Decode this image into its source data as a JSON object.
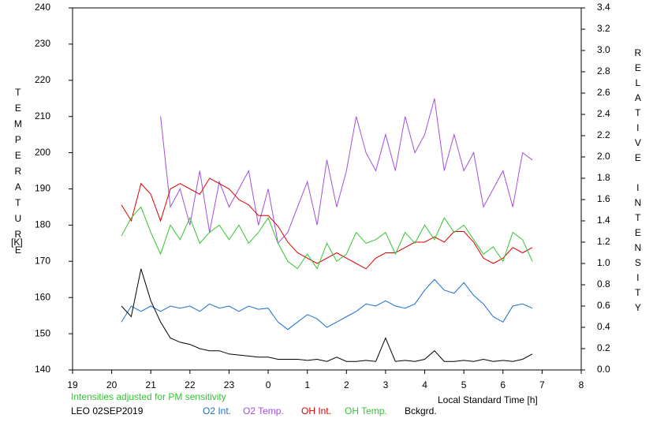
{
  "chart_data": {
    "type": "line",
    "note_text": "Intensities adjusted for PM sensitivity",
    "station": "LEO 02SEP2019",
    "ylabel": "TEMPERATURE",
    "yunit": "[K]",
    "y2label": "RELATIVE INTENSITY",
    "xlabel": "Local Standard Time [h]",
    "xlim": [
      19,
      32
    ],
    "xticks": [
      19,
      20,
      21,
      22,
      23,
      {
        "value": 24,
        "label": "0"
      },
      {
        "value": 25,
        "label": "1"
      },
      {
        "value": 26,
        "label": "2"
      },
      {
        "value": 27,
        "label": "3"
      },
      {
        "value": 28,
        "label": "4"
      },
      {
        "value": 29,
        "label": "5"
      },
      {
        "value": 30,
        "label": "6"
      },
      {
        "value": 31,
        "label": "7"
      },
      {
        "value": 32,
        "label": "8"
      }
    ],
    "ylim": [
      140,
      240
    ],
    "yticks": [
      140,
      150,
      160,
      170,
      180,
      190,
      200,
      210,
      220,
      230,
      240
    ],
    "y2lim": [
      0,
      3.4
    ],
    "y2ticks": [
      {
        "value": 0,
        "label": "0.0"
      },
      0.2,
      0.4,
      0.6,
      0.8,
      {
        "value": 1,
        "label": "1.0"
      },
      1.2,
      1.4,
      1.6,
      1.8,
      {
        "value": 2,
        "label": "2.0"
      },
      2.2,
      2.4,
      2.6,
      2.8,
      {
        "value": 3,
        "label": "3.0"
      },
      3.2,
      3.4
    ],
    "x": [
      20.25,
      20.5,
      20.75,
      21,
      21.25,
      21.5,
      21.75,
      22,
      22.25,
      22.5,
      22.75,
      23,
      23.25,
      23.5,
      23.75,
      24,
      24.25,
      24.5,
      24.75,
      25,
      25.25,
      25.5,
      25.75,
      26,
      26.25,
      26.5,
      26.75,
      27,
      27.25,
      27.5,
      27.75,
      28,
      28.25,
      28.5,
      28.75,
      29,
      29.25,
      29.5,
      29.75,
      30,
      30.25,
      30.5,
      30.75
    ],
    "series": [
      {
        "name": "O2 Int.",
        "color": "#1a6fd0",
        "axis": "y2",
        "values": [
          0.45,
          0.6,
          0.55,
          0.6,
          0.55,
          0.6,
          0.58,
          0.6,
          0.55,
          0.62,
          0.58,
          0.6,
          0.55,
          0.6,
          0.57,
          0.58,
          0.45,
          0.38,
          0.45,
          0.52,
          0.48,
          0.4,
          0.45,
          0.5,
          0.55,
          0.62,
          0.6,
          0.65,
          0.6,
          0.58,
          0.62,
          0.75,
          0.85,
          0.75,
          0.72,
          0.82,
          0.7,
          0.62,
          0.5,
          0.45,
          0.6,
          0.62,
          0.58
        ]
      },
      {
        "name": "O2 Temp.",
        "color": "#a050dc",
        "axis": "y",
        "values": [
          null,
          null,
          null,
          null,
          210,
          185,
          190,
          180,
          195,
          178,
          192,
          185,
          190,
          195,
          180,
          190,
          175,
          178,
          185,
          192,
          180,
          198,
          185,
          195,
          210,
          200,
          195,
          205,
          195,
          210,
          200,
          205,
          215,
          195,
          205,
          195,
          200,
          185,
          190,
          195,
          185,
          200,
          198
        ]
      },
      {
        "name": "OH Int.",
        "color": "#e00000",
        "axis": "y2",
        "values": [
          1.55,
          1.4,
          1.75,
          1.65,
          1.4,
          1.7,
          1.75,
          1.7,
          1.65,
          1.8,
          1.75,
          1.7,
          1.6,
          1.55,
          1.45,
          1.45,
          1.35,
          1.2,
          1.1,
          1.05,
          1.0,
          1.05,
          1.1,
          1.05,
          1.0,
          0.95,
          1.05,
          1.1,
          1.1,
          1.15,
          1.2,
          1.2,
          1.25,
          1.2,
          1.3,
          1.3,
          1.2,
          1.05,
          1.0,
          1.05,
          1.15,
          1.1,
          1.15
        ]
      },
      {
        "name": "OH Temp.",
        "color": "#33c433",
        "axis": "y",
        "values": [
          177,
          182,
          185,
          178,
          172,
          180,
          176,
          182,
          175,
          178,
          180,
          176,
          180,
          175,
          178,
          182,
          175,
          170,
          168,
          172,
          168,
          175,
          170,
          172,
          178,
          175,
          176,
          178,
          172,
          178,
          175,
          180,
          176,
          182,
          178,
          180,
          176,
          172,
          174,
          170,
          178,
          176,
          170
        ]
      },
      {
        "name": "Bckgrd.",
        "color": "#000000",
        "axis": "y2",
        "values": [
          0.6,
          0.5,
          0.95,
          0.65,
          0.45,
          0.3,
          0.26,
          0.24,
          0.2,
          0.18,
          0.18,
          0.15,
          0.14,
          0.13,
          0.12,
          0.12,
          0.1,
          0.1,
          0.1,
          0.09,
          0.1,
          0.08,
          0.12,
          0.08,
          0.08,
          0.09,
          0.08,
          0.3,
          0.08,
          0.09,
          0.08,
          0.1,
          0.18,
          0.08,
          0.08,
          0.09,
          0.08,
          0.1,
          0.08,
          0.09,
          0.08,
          0.1,
          0.15
        ]
      }
    ]
  }
}
